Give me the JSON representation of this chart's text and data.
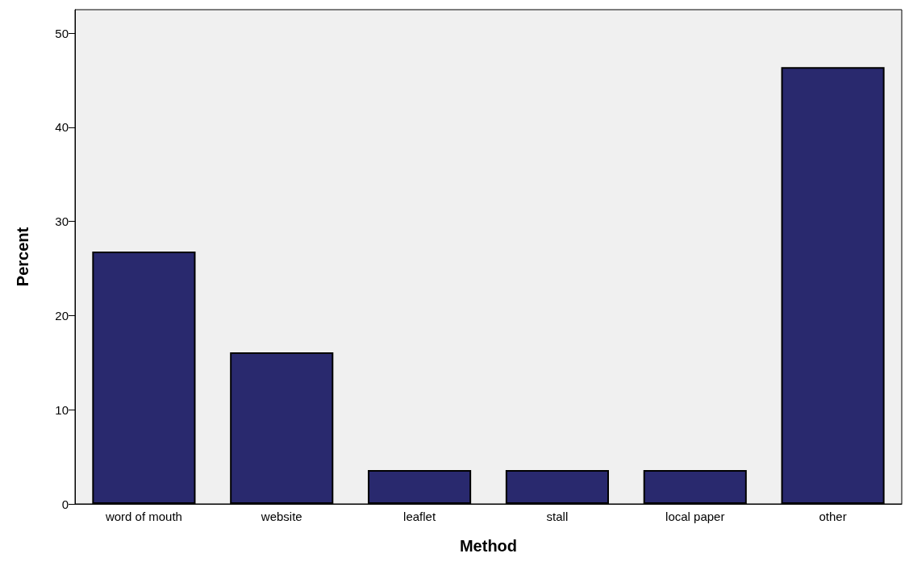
{
  "chart_data": {
    "type": "bar",
    "xlabel": "Method",
    "ylabel": "Percent",
    "categories": [
      "word of mouth",
      "website",
      "leaflet",
      "stall",
      "local paper",
      "other"
    ],
    "values": [
      26.8,
      16.1,
      3.6,
      3.6,
      3.6,
      46.4
    ],
    "color": "#29296e",
    "ylim": [
      0,
      52.5
    ],
    "yticks": [
      0,
      10,
      20,
      30,
      40,
      50
    ],
    "grid": false
  }
}
